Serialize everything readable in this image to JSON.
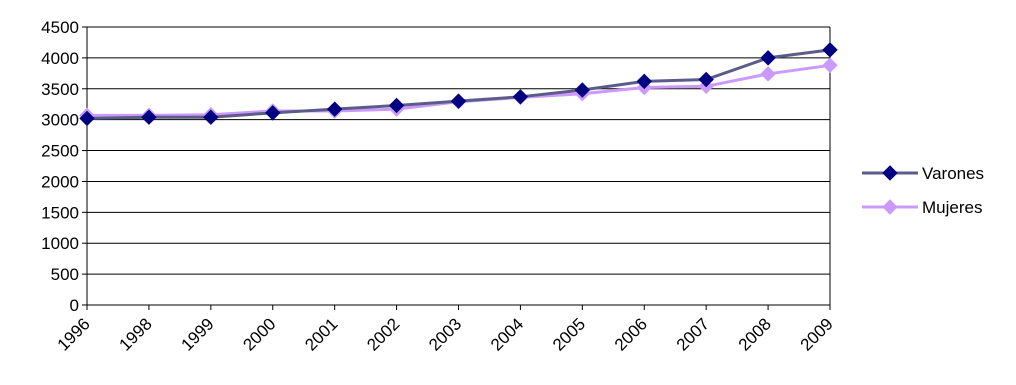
{
  "chart_data": {
    "type": "line",
    "categories": [
      "1996",
      "1998",
      "1999",
      "2000",
      "2001",
      "2002",
      "2003",
      "2004",
      "2005",
      "2006",
      "2007",
      "2008",
      "2009"
    ],
    "series": [
      {
        "name": "Varones",
        "color": "#000080",
        "line_color": "#5c5c8a",
        "values": [
          3020,
          3040,
          3040,
          3110,
          3170,
          3230,
          3300,
          3370,
          3480,
          3620,
          3650,
          4000,
          4130
        ]
      },
      {
        "name": "Mujeres",
        "color": "#cc99ff",
        "line_color": "#cc99ff",
        "values": [
          3070,
          3070,
          3080,
          3140,
          3140,
          3170,
          3290,
          3360,
          3420,
          3520,
          3540,
          3740,
          3880
        ]
      }
    ],
    "yticks": [
      0,
      500,
      1000,
      1500,
      2000,
      2500,
      3000,
      3500,
      4000,
      4500
    ],
    "ylim": [
      0,
      4500
    ],
    "grid": true,
    "legend_position": "right"
  }
}
